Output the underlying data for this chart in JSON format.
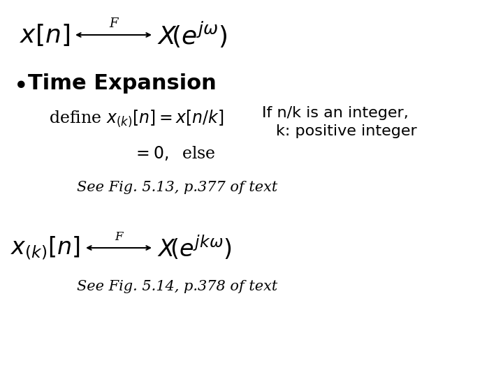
{
  "bg_color": "#ffffff",
  "bullet_text": "Time Expansion",
  "condition_text1": "If n/k is an integer,",
  "condition_text2": "k: positive integer",
  "fig1_text": "See Fig. 5.13, p.377 of text",
  "fig2_text": "See Fig. 5.14, p.378 of text",
  "font_size_main": 26,
  "font_size_bullet": 20,
  "font_size_define": 17,
  "font_size_condition": 16,
  "font_size_fig": 15
}
